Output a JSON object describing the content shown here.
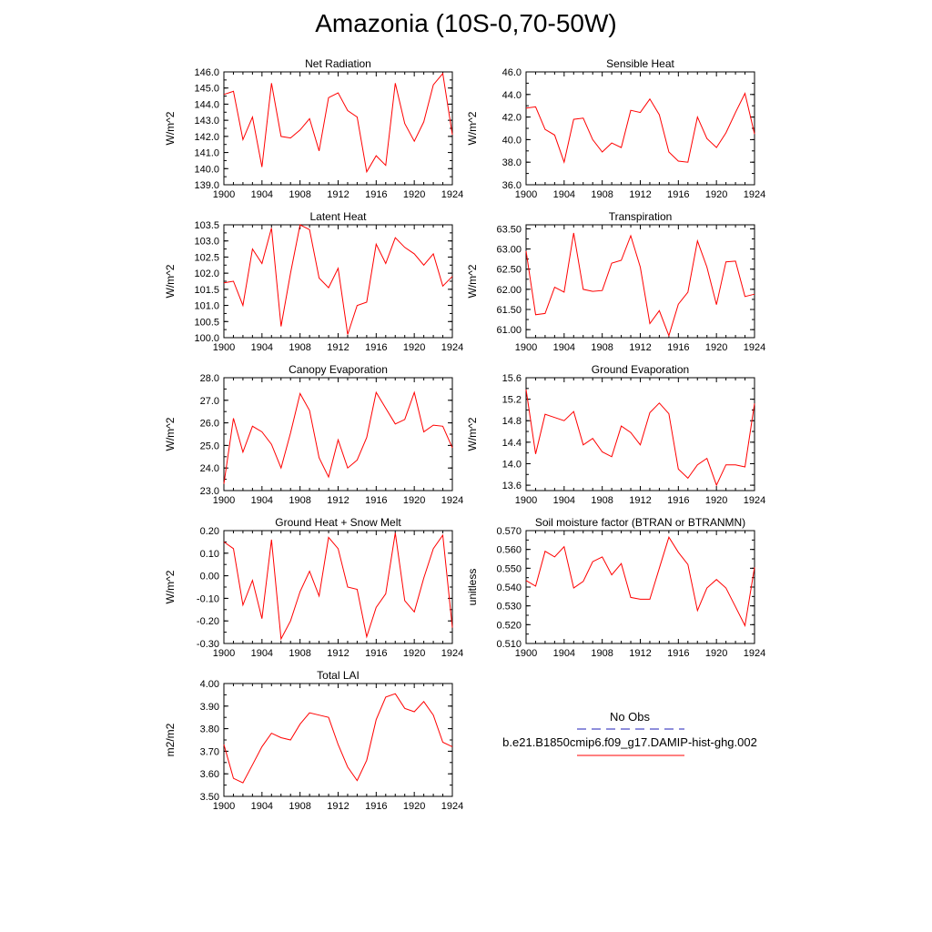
{
  "page_title": "Amazonia (10S-0,70-50W)",
  "legend": {
    "obs_label": "No Obs",
    "obs_color": "#1f1fb8",
    "model_label": "b.e21.B1850cmip6.f09_g17.DAMIP-hist-ghg.002",
    "model_color": "#ff0000"
  },
  "chart_data": [
    {
      "type": "line",
      "title": "Net Radiation",
      "ylabel": "W/m^2",
      "ylim": [
        139.0,
        146.0
      ],
      "yticks": [
        "139.0",
        "140.0",
        "141.0",
        "142.0",
        "143.0",
        "144.0",
        "145.0",
        "146.0"
      ],
      "xlim": [
        1900,
        1924
      ],
      "xticks": [
        "1900",
        "1904",
        "1908",
        "1912",
        "1916",
        "1920",
        "1924"
      ],
      "x": [
        1900,
        1901,
        1902,
        1903,
        1904,
        1905,
        1906,
        1907,
        1908,
        1909,
        1910,
        1911,
        1912,
        1913,
        1914,
        1915,
        1916,
        1917,
        1918,
        1919,
        1920,
        1921,
        1922,
        1923,
        1924
      ],
      "series": [
        {
          "values": [
            144.6,
            144.8,
            141.8,
            143.2,
            140.1,
            145.3,
            142.0,
            141.9,
            142.4,
            143.1,
            141.1,
            144.4,
            144.7,
            143.6,
            143.2,
            139.8,
            140.8,
            140.2,
            145.3,
            142.8,
            141.7,
            142.9,
            145.2,
            145.9,
            142.1
          ]
        }
      ]
    },
    {
      "type": "line",
      "title": "Sensible Heat",
      "ylabel": "W/m^2",
      "ylim": [
        36.0,
        46.0
      ],
      "yticks": [
        "36.0",
        "38.0",
        "40.0",
        "42.0",
        "44.0",
        "46.0"
      ],
      "xlim": [
        1900,
        1924
      ],
      "xticks": [
        "1900",
        "1904",
        "1908",
        "1912",
        "1916",
        "1920",
        "1924"
      ],
      "x": [
        1900,
        1901,
        1902,
        1903,
        1904,
        1905,
        1906,
        1907,
        1908,
        1909,
        1910,
        1911,
        1912,
        1913,
        1914,
        1915,
        1916,
        1917,
        1918,
        1919,
        1920,
        1921,
        1922,
        1923,
        1924
      ],
      "series": [
        {
          "values": [
            42.8,
            42.9,
            40.9,
            40.4,
            38.0,
            41.8,
            41.9,
            40.0,
            38.9,
            39.7,
            39.3,
            42.6,
            42.4,
            43.6,
            42.2,
            38.9,
            38.1,
            38.0,
            42.0,
            40.1,
            39.3,
            40.6,
            42.4,
            44.1,
            40.5
          ]
        }
      ]
    },
    {
      "type": "line",
      "title": "Latent Heat",
      "ylabel": "W/m^2",
      "ylim": [
        100.0,
        103.5
      ],
      "yticks": [
        "100.0",
        "100.5",
        "101.0",
        "101.5",
        "102.0",
        "102.5",
        "103.0",
        "103.5"
      ],
      "xlim": [
        1900,
        1924
      ],
      "xticks": [
        "1900",
        "1904",
        "1908",
        "1912",
        "1916",
        "1920",
        "1924"
      ],
      "x": [
        1900,
        1901,
        1902,
        1903,
        1904,
        1905,
        1906,
        1907,
        1908,
        1909,
        1910,
        1911,
        1912,
        1913,
        1914,
        1915,
        1916,
        1917,
        1918,
        1919,
        1920,
        1921,
        1922,
        1923,
        1924
      ],
      "series": [
        {
          "values": [
            101.7,
            101.75,
            101.0,
            102.75,
            102.3,
            103.4,
            100.35,
            102.0,
            103.5,
            103.35,
            101.85,
            101.55,
            102.15,
            100.1,
            101.0,
            101.1,
            102.9,
            102.3,
            103.1,
            102.8,
            102.6,
            102.25,
            102.6,
            101.6,
            101.9
          ]
        }
      ]
    },
    {
      "type": "line",
      "title": "Transpiration",
      "ylabel": "W/m^2",
      "ylim": [
        60.8,
        63.6
      ],
      "yticks": [
        "61.00",
        "61.50",
        "62.00",
        "62.50",
        "63.00",
        "63.50"
      ],
      "ytick_values": [
        61.0,
        61.5,
        62.0,
        62.5,
        63.0,
        63.5
      ],
      "xlim": [
        1900,
        1924
      ],
      "xticks": [
        "1900",
        "1904",
        "1908",
        "1912",
        "1916",
        "1920",
        "1924"
      ],
      "x": [
        1900,
        1901,
        1902,
        1903,
        1904,
        1905,
        1906,
        1907,
        1908,
        1909,
        1910,
        1911,
        1912,
        1913,
        1914,
        1915,
        1916,
        1917,
        1918,
        1919,
        1920,
        1921,
        1922,
        1923,
        1924
      ],
      "series": [
        {
          "values": [
            62.95,
            61.37,
            61.4,
            62.05,
            61.93,
            63.4,
            62.0,
            61.95,
            61.97,
            62.65,
            62.72,
            63.33,
            62.55,
            61.15,
            61.47,
            60.85,
            61.63,
            61.93,
            63.2,
            62.55,
            61.62,
            62.68,
            62.7,
            61.82,
            61.88
          ]
        }
      ]
    },
    {
      "type": "line",
      "title": "Canopy Evaporation",
      "ylabel": "W/m^2",
      "ylim": [
        23.0,
        28.0
      ],
      "yticks": [
        "23.0",
        "24.0",
        "25.0",
        "26.0",
        "27.0",
        "28.0"
      ],
      "xlim": [
        1900,
        1924
      ],
      "xticks": [
        "1900",
        "1904",
        "1908",
        "1912",
        "1916",
        "1920",
        "1924"
      ],
      "x": [
        1900,
        1901,
        1902,
        1903,
        1904,
        1905,
        1906,
        1907,
        1908,
        1909,
        1910,
        1911,
        1912,
        1913,
        1914,
        1915,
        1916,
        1917,
        1918,
        1919,
        1920,
        1921,
        1922,
        1923,
        1924
      ],
      "series": [
        {
          "values": [
            23.3,
            26.2,
            24.7,
            25.85,
            25.6,
            25.05,
            24.0,
            25.55,
            27.3,
            26.55,
            24.45,
            23.6,
            25.25,
            24.0,
            24.35,
            25.35,
            27.35,
            26.65,
            25.95,
            26.15,
            27.35,
            25.6,
            25.9,
            25.85,
            24.9
          ]
        }
      ]
    },
    {
      "type": "line",
      "title": "Ground Evaporation",
      "ylabel": "W/m^2",
      "ylim": [
        13.5,
        15.6
      ],
      "yticks": [
        "13.6",
        "14.0",
        "14.4",
        "14.8",
        "15.2",
        "15.6"
      ],
      "ytick_values": [
        13.6,
        14.0,
        14.4,
        14.8,
        15.2,
        15.6
      ],
      "xlim": [
        1900,
        1924
      ],
      "xticks": [
        "1900",
        "1904",
        "1908",
        "1912",
        "1916",
        "1920",
        "1924"
      ],
      "x": [
        1900,
        1901,
        1902,
        1903,
        1904,
        1905,
        1906,
        1907,
        1908,
        1909,
        1910,
        1911,
        1912,
        1913,
        1914,
        1915,
        1916,
        1917,
        1918,
        1919,
        1920,
        1921,
        1922,
        1923,
        1924
      ],
      "series": [
        {
          "values": [
            15.38,
            14.18,
            14.92,
            14.86,
            14.8,
            14.97,
            14.35,
            14.47,
            14.22,
            14.13,
            14.7,
            14.58,
            14.35,
            14.95,
            15.13,
            14.93,
            13.9,
            13.73,
            13.98,
            14.1,
            13.6,
            13.98,
            13.98,
            13.94,
            15.12
          ]
        }
      ]
    },
    {
      "type": "line",
      "title": "Ground Heat + Snow Melt",
      "ylabel": "W/m^2",
      "ylim": [
        -0.3,
        0.2
      ],
      "yticks": [
        "-0.30",
        "-0.20",
        "-0.10",
        "0.00",
        "0.10",
        "0.20"
      ],
      "xlim": [
        1900,
        1924
      ],
      "xticks": [
        "1900",
        "1904",
        "1908",
        "1912",
        "1916",
        "1920",
        "1924"
      ],
      "x": [
        1900,
        1901,
        1902,
        1903,
        1904,
        1905,
        1906,
        1907,
        1908,
        1909,
        1910,
        1911,
        1912,
        1913,
        1914,
        1915,
        1916,
        1917,
        1918,
        1919,
        1920,
        1921,
        1922,
        1923,
        1924
      ],
      "series": [
        {
          "values": [
            0.15,
            0.12,
            -0.13,
            -0.02,
            -0.19,
            0.16,
            -0.28,
            -0.2,
            -0.07,
            0.02,
            -0.09,
            0.17,
            0.12,
            -0.05,
            -0.06,
            -0.27,
            -0.14,
            -0.08,
            0.19,
            -0.11,
            -0.16,
            -0.01,
            0.12,
            0.18,
            -0.23
          ]
        }
      ]
    },
    {
      "type": "line",
      "title": "Soil moisture factor (BTRAN or BTRANMN)",
      "ylabel": "unitless",
      "ylim": [
        0.51,
        0.57
      ],
      "yticks": [
        "0.510",
        "0.520",
        "0.530",
        "0.540",
        "0.550",
        "0.560",
        "0.570"
      ],
      "xlim": [
        1900,
        1924
      ],
      "xticks": [
        "1900",
        "1904",
        "1908",
        "1912",
        "1916",
        "1920",
        "1924"
      ],
      "x": [
        1900,
        1901,
        1902,
        1903,
        1904,
        1905,
        1906,
        1907,
        1908,
        1909,
        1910,
        1911,
        1912,
        1913,
        1914,
        1915,
        1916,
        1917,
        1918,
        1919,
        1920,
        1921,
        1922,
        1923,
        1924
      ],
      "series": [
        {
          "values": [
            0.5435,
            0.5405,
            0.559,
            0.556,
            0.5615,
            0.5395,
            0.543,
            0.5535,
            0.556,
            0.5465,
            0.5525,
            0.5345,
            0.5335,
            0.5335,
            0.55,
            0.5665,
            0.5585,
            0.552,
            0.5275,
            0.5395,
            0.544,
            0.5395,
            0.5295,
            0.5195,
            0.5505
          ]
        }
      ]
    },
    {
      "type": "line",
      "title": "Total LAI",
      "ylabel": "m2/m2",
      "ylim": [
        3.5,
        4.0
      ],
      "yticks": [
        "3.50",
        "3.60",
        "3.70",
        "3.80",
        "3.90",
        "4.00"
      ],
      "xlim": [
        1900,
        1924
      ],
      "xticks": [
        "1900",
        "1904",
        "1908",
        "1912",
        "1916",
        "1920",
        "1924"
      ],
      "x": [
        1900,
        1901,
        1902,
        1903,
        1904,
        1905,
        1906,
        1907,
        1908,
        1909,
        1910,
        1911,
        1912,
        1913,
        1914,
        1915,
        1916,
        1917,
        1918,
        1919,
        1920,
        1921,
        1922,
        1923,
        1924
      ],
      "series": [
        {
          "values": [
            3.73,
            3.58,
            3.56,
            3.64,
            3.72,
            3.78,
            3.76,
            3.75,
            3.82,
            3.87,
            3.86,
            3.85,
            3.73,
            3.63,
            3.57,
            3.66,
            3.84,
            3.94,
            3.955,
            3.89,
            3.875,
            3.92,
            3.86,
            3.74,
            3.72
          ]
        }
      ]
    }
  ]
}
